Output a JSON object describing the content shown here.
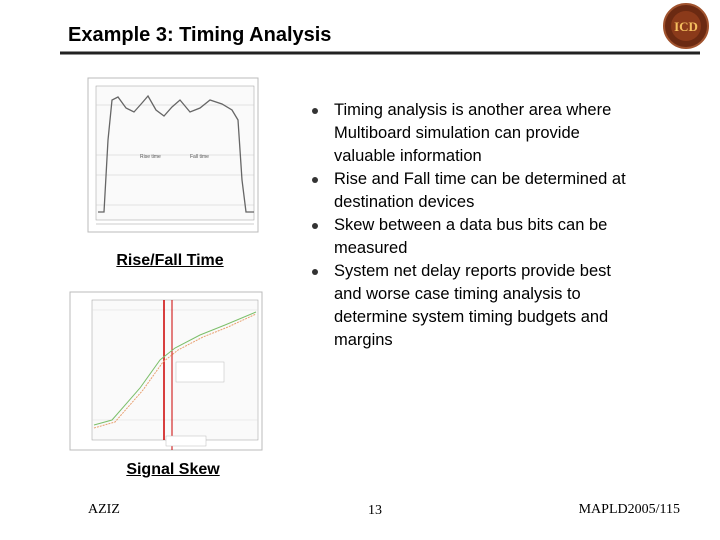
{
  "header": {
    "title": "Example 3: Timing Analysis"
  },
  "figures": [
    {
      "caption": "Rise/Fall Time"
    },
    {
      "caption": "Signal Skew"
    }
  ],
  "bullets": [
    "Timing analysis is another area where Multiboard simulation can provide valuable information",
    "Rise and Fall time can be determined at destination devices",
    "Skew between a data bus bits can be measured",
    "System net delay reports provide best and worse case timing analysis to determine system timing budgets and margins"
  ],
  "footer": {
    "left": "AZIZ",
    "center": "13",
    "right": "MAPLD2005/115"
  }
}
